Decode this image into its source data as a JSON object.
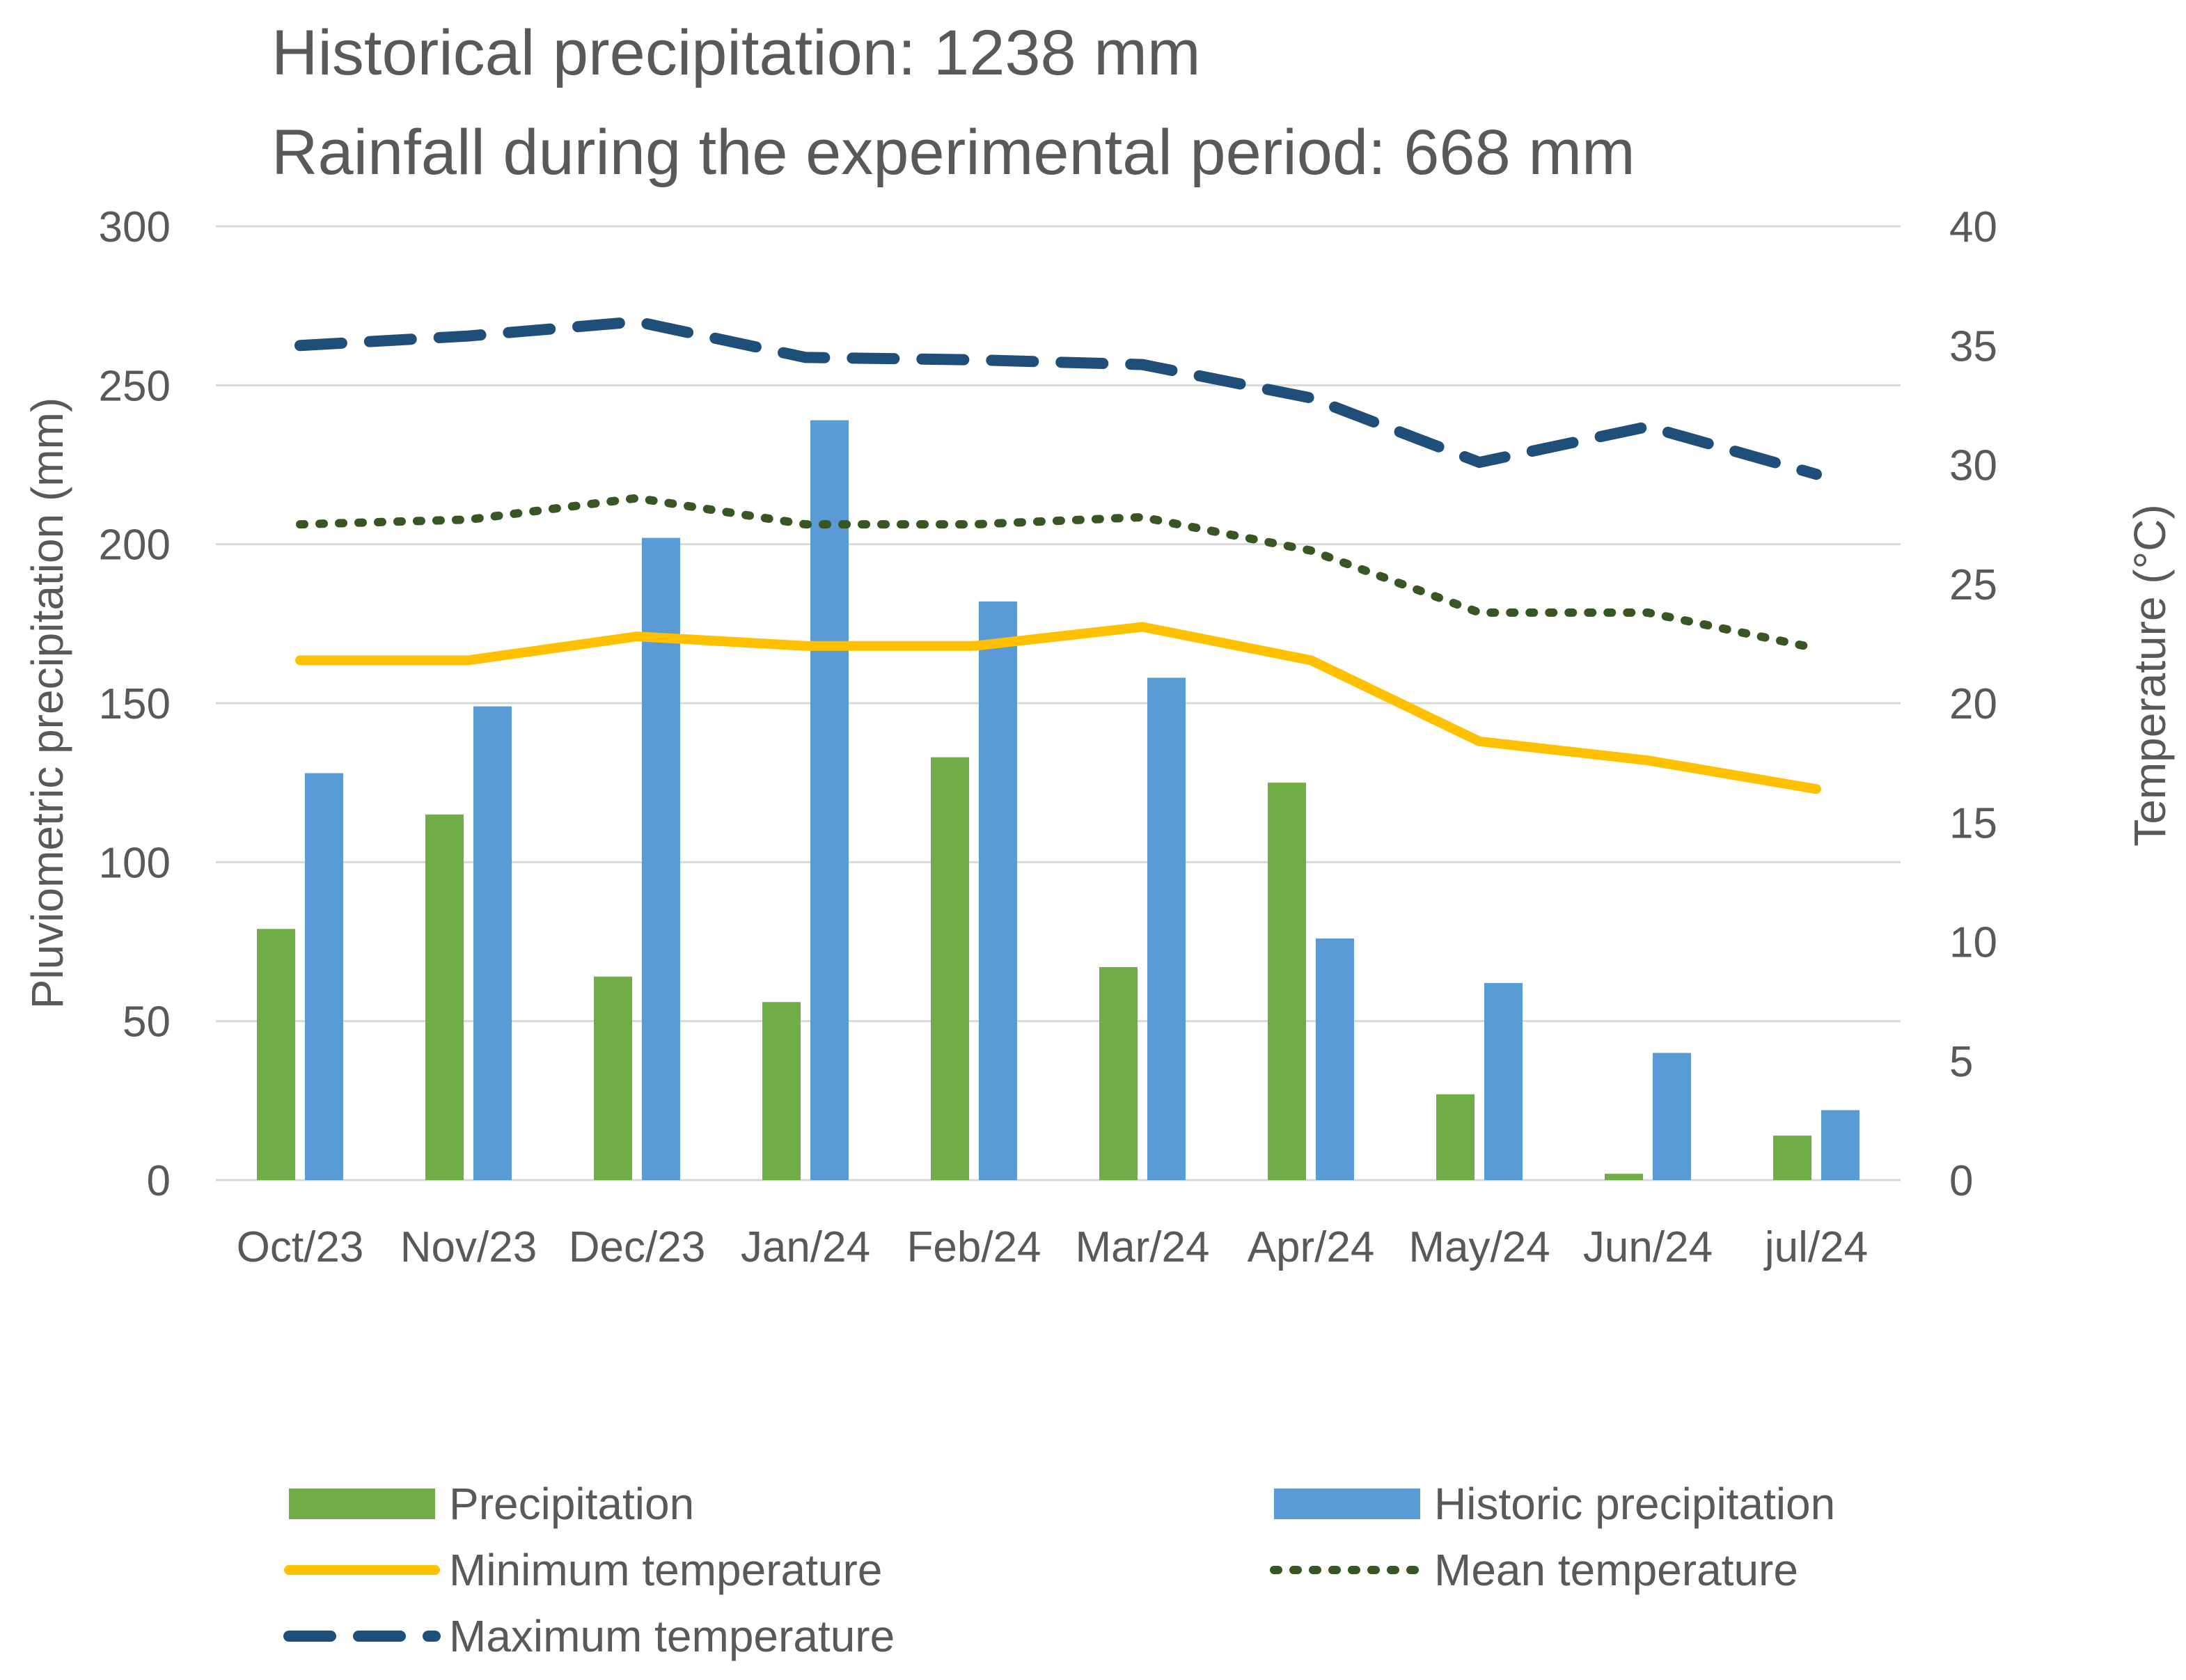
{
  "chart_data": {
    "type": "bar",
    "title_lines": [
      "Historical precipitation: 1238 mm",
      "Rainfall during the experimental period: 668 mm"
    ],
    "categories": [
      "Oct/23",
      "Nov/23",
      "Dec/23",
      "Jan/24",
      "Feb/24",
      "Mar/24",
      "Apr/24",
      "May/24",
      "Jun/24",
      "jul/24"
    ],
    "ylabel_left": "Pluviometric precipitation (mm)",
    "ylabel_right": "Temperature  (°C)",
    "ylim_left": [
      0,
      300
    ],
    "ylim_right": [
      0,
      40
    ],
    "yticks_left": [
      "0",
      "50",
      "100",
      "150",
      "200",
      "250",
      "300"
    ],
    "yticks_right": [
      "0",
      "5",
      "10",
      "15",
      "20",
      "25",
      "30",
      "35",
      "40"
    ],
    "grid": true,
    "legend_position": "bottom",
    "bar_series": [
      {
        "name": "Precipitation",
        "color": "#70ad47",
        "axis": "left",
        "values": [
          79,
          115,
          64,
          56,
          133,
          67,
          125,
          27,
          2,
          14
        ]
      },
      {
        "name": "Historic precipitation",
        "color": "#5b9bd5",
        "axis": "left",
        "values": [
          128,
          149,
          202,
          239,
          182,
          158,
          76,
          62,
          40,
          22
        ]
      }
    ],
    "line_series": [
      {
        "name": "Minimum temperature",
        "color": "#ffc000",
        "style": "solid",
        "axis": "right",
        "values": [
          21.8,
          21.8,
          22.8,
          22.4,
          22.4,
          23.2,
          21.8,
          18.4,
          17.6,
          16.4
        ]
      },
      {
        "name": "Mean temperature",
        "color": "#375623",
        "style": "dotted",
        "axis": "right",
        "values": [
          27.5,
          27.7,
          28.6,
          27.5,
          27.5,
          27.8,
          26.4,
          23.8,
          23.8,
          22.3
        ]
      },
      {
        "name": "Maximum temperature",
        "color": "#1f4e79",
        "style": "dashed",
        "axis": "right",
        "values": [
          35,
          35.4,
          36,
          34.5,
          34.4,
          34.2,
          32.8,
          30.1,
          31.6,
          29.6
        ]
      }
    ],
    "legend": [
      {
        "label": "Precipitation",
        "kind": "bar",
        "color": "#70ad47"
      },
      {
        "label": "Historic precipitation",
        "kind": "bar",
        "color": "#5b9bd5"
      },
      {
        "label": "Minimum temperature",
        "kind": "solid",
        "color": "#ffc000"
      },
      {
        "label": "Mean temperature",
        "kind": "dotted",
        "color": "#375623"
      },
      {
        "label": "Maximum temperature",
        "kind": "dashed",
        "color": "#1f4e79"
      }
    ]
  }
}
